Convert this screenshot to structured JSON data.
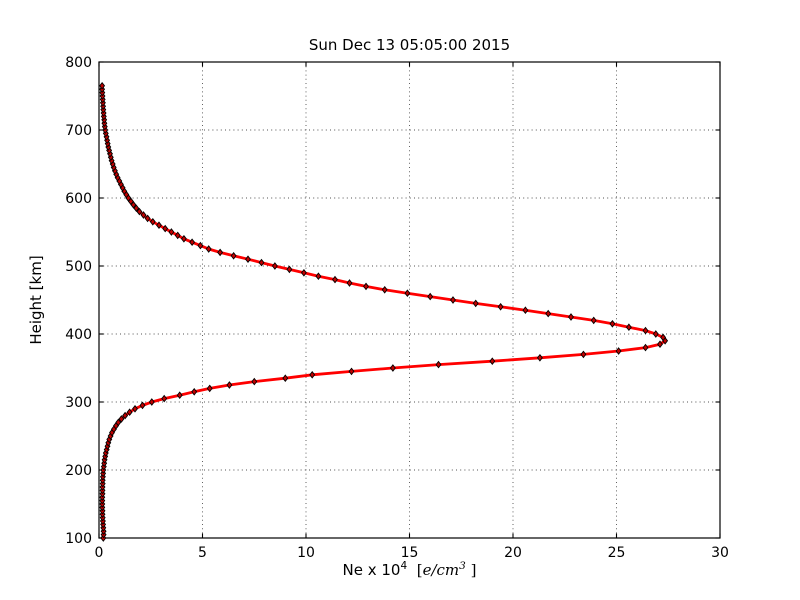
{
  "title": "Sun Dec 13 05:05:00 2015",
  "axes": {
    "ylabel": "Height [km]",
    "xlabel_parts": {
      "prefix": "Ne x 10",
      "exponent": "4",
      "bracket_open": "[",
      "unit": "e/cm",
      "unit_exponent": "3",
      "bracket_close": "]"
    }
  },
  "chart_data": {
    "type": "line",
    "title": "Sun Dec 13 05:05:00 2015",
    "xlabel": "Ne x 10^4 [e/cm^3]",
    "ylabel": "Height [km]",
    "xlim": [
      0,
      30
    ],
    "ylim": [
      100,
      800
    ],
    "x_ticks": [
      0,
      5,
      10,
      15,
      20,
      25,
      30
    ],
    "y_ticks": [
      100,
      200,
      300,
      400,
      500,
      600,
      700,
      800
    ],
    "grid": "dotted",
    "grid_color": "#333333",
    "line_color": "#ff0000",
    "line_width": 2.8,
    "marker": "diamond",
    "marker_fill": "#c00000",
    "marker_edge_color": "#000000",
    "peak": {
      "height_km": 390,
      "ne_1e4_per_cm3": 27.35
    },
    "series": [
      {
        "name": "electron-density-profile",
        "height_km": [
          100,
          105,
          110,
          115,
          120,
          125,
          130,
          135,
          140,
          145,
          150,
          155,
          160,
          165,
          170,
          175,
          180,
          185,
          190,
          195,
          200,
          205,
          210,
          215,
          220,
          225,
          230,
          235,
          240,
          245,
          250,
          255,
          260,
          265,
          270,
          275,
          280,
          285,
          290,
          295,
          300,
          305,
          310,
          315,
          320,
          325,
          330,
          335,
          340,
          345,
          350,
          355,
          360,
          365,
          370,
          375,
          380,
          385,
          390,
          395,
          400,
          405,
          410,
          415,
          420,
          425,
          430,
          435,
          440,
          445,
          450,
          455,
          460,
          465,
          470,
          475,
          480,
          485,
          490,
          495,
          500,
          505,
          510,
          515,
          520,
          525,
          530,
          535,
          540,
          545,
          550,
          555,
          560,
          565,
          570,
          575,
          580,
          585,
          590,
          595,
          600,
          605,
          610,
          615,
          620,
          625,
          630,
          635,
          640,
          645,
          650,
          655,
          660,
          665,
          670,
          675,
          680,
          685,
          690,
          695,
          700,
          705,
          710,
          715,
          720,
          725,
          730,
          735,
          740,
          745,
          750,
          755,
          760,
          765
        ],
        "ne_1e4_per_cm3": [
          0.21,
          0.22,
          0.22,
          0.21,
          0.2,
          0.19,
          0.18,
          0.17,
          0.17,
          0.16,
          0.16,
          0.16,
          0.16,
          0.17,
          0.17,
          0.17,
          0.18,
          0.18,
          0.19,
          0.2,
          0.21,
          0.23,
          0.25,
          0.27,
          0.3,
          0.33,
          0.37,
          0.41,
          0.45,
          0.5,
          0.56,
          0.63,
          0.72,
          0.82,
          0.93,
          1.08,
          1.26,
          1.48,
          1.74,
          2.1,
          2.55,
          3.15,
          3.9,
          4.6,
          5.35,
          6.3,
          7.5,
          9.0,
          10.3,
          12.2,
          14.2,
          16.4,
          19.0,
          21.3,
          23.4,
          25.1,
          26.4,
          27.1,
          27.35,
          27.25,
          26.9,
          26.4,
          25.6,
          24.8,
          23.9,
          22.8,
          21.7,
          20.6,
          19.4,
          18.2,
          17.1,
          16.0,
          14.9,
          13.8,
          12.9,
          12.1,
          11.4,
          10.6,
          9.9,
          9.2,
          8.5,
          7.85,
          7.2,
          6.5,
          5.85,
          5.3,
          4.9,
          4.5,
          4.1,
          3.8,
          3.5,
          3.2,
          2.9,
          2.6,
          2.35,
          2.15,
          1.95,
          1.8,
          1.66,
          1.54,
          1.42,
          1.32,
          1.22,
          1.14,
          1.06,
          0.98,
          0.9,
          0.83,
          0.77,
          0.71,
          0.66,
          0.61,
          0.57,
          0.53,
          0.49,
          0.45,
          0.42,
          0.39,
          0.36,
          0.33,
          0.3,
          0.28,
          0.26,
          0.25,
          0.23,
          0.22,
          0.21,
          0.2,
          0.19,
          0.18,
          0.17,
          0.16,
          0.15,
          0.15
        ]
      }
    ]
  }
}
